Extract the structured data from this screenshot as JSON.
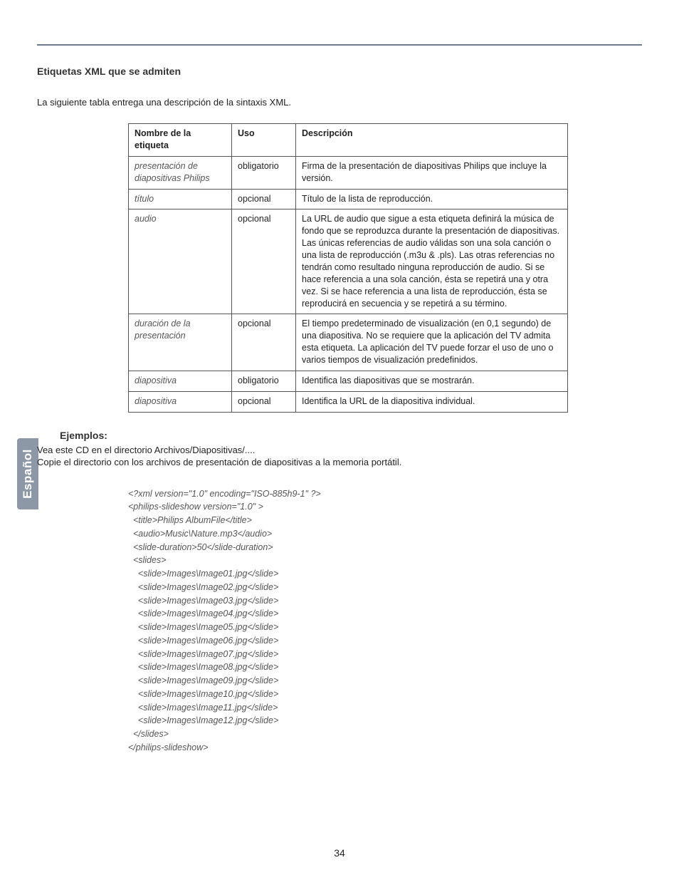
{
  "side_tab": "Español",
  "section_heading": "Etiquetas XML que se admiten",
  "intro_text": "La siguiente tabla entrega una descripción de la sintaxis XML.",
  "table": {
    "columns": [
      "Nombre de la etiqueta",
      "Uso",
      "Descripción"
    ],
    "col_widths": [
      "145px",
      "90px",
      "auto"
    ],
    "rows": [
      {
        "name": "presentación de diapositivas Philips",
        "uso": "obligatorio",
        "desc": "Firma de la presentación de diapositivas Philips que incluye la versión."
      },
      {
        "name": "título",
        "uso": "opcional",
        "desc": "Título de la lista de reproducción."
      },
      {
        "name": "audio",
        "uso": "opcional",
        "desc": "La URL de audio que sigue a esta etiqueta definirá la música de fondo que se reproduzca durante la presentación de diapositivas.\nLas únicas referencias de audio válidas son una sola canción o una lista de reproducción (.m3u & .pls). Las otras referencias no tendrán como resultado ninguna reproducción de audio. Si se hace referencia a una sola canción, ésta se repetirá una y otra vez. Si se hace referencia a una lista de reproducción, ésta se reproducirá en secuencia y se repetirá a su término."
      },
      {
        "name": "duración de la presentación",
        "uso": "opcional",
        "desc": "El tiempo predeterminado de visualización (en 0,1 segundo) de una diapositiva. No se requiere que la aplicación del TV admita esta etiqueta. La aplicación del TV puede forzar el uso de uno o varios tiempos de visualización predefinidos."
      },
      {
        "name": "diapositiva",
        "uso": "obligatorio",
        "desc": "Identifica las diapositivas que se mostrarán."
      },
      {
        "name": "diapositiva",
        "uso": "opcional",
        "desc": "Identifica la URL de la diapositiva individual."
      }
    ]
  },
  "examples_heading": "Ejemplos:",
  "examples_lines": [
    "Vea este CD en el directorio Archivos/Diapositivas/....",
    "Copie el directorio con los archivos de presentación de diapositivas a la memoria portátil."
  ],
  "xml_code": "<?xml version=\"1.0\" encoding=\"ISO-885h9-1\" ?>\n<philips-slideshow version=\"1.0\" >\n  <title>Philips AlbumFile</title>\n  <audio>Music\\Nature.mp3</audio>\n  <slide-duration>50</slide-duration>\n  <slides>\n    <slide>Images\\Image01.jpg</slide>\n    <slide>Images\\Image02.jpg</slide>\n    <slide>Images\\Image03.jpg</slide>\n    <slide>Images\\Image04.jpg</slide>\n    <slide>Images\\Image05.jpg</slide>\n    <slide>Images\\Image06.jpg</slide>\n    <slide>Images\\Image07.jpg</slide>\n    <slide>Images\\Image08.jpg</slide>\n    <slide>Images\\Image09.jpg</slide>\n    <slide>Images\\Image10.jpg</slide>\n    <slide>Images\\Image11.jpg</slide>\n    <slide>Images\\Image12.jpg</slide>\n  </slides>\n</philips-slideshow>",
  "page_number": "34",
  "colors": {
    "rule": "#6b7b8c",
    "tab_bg": "#8d98a6",
    "border": "#555555",
    "italic_text": "#555555"
  }
}
